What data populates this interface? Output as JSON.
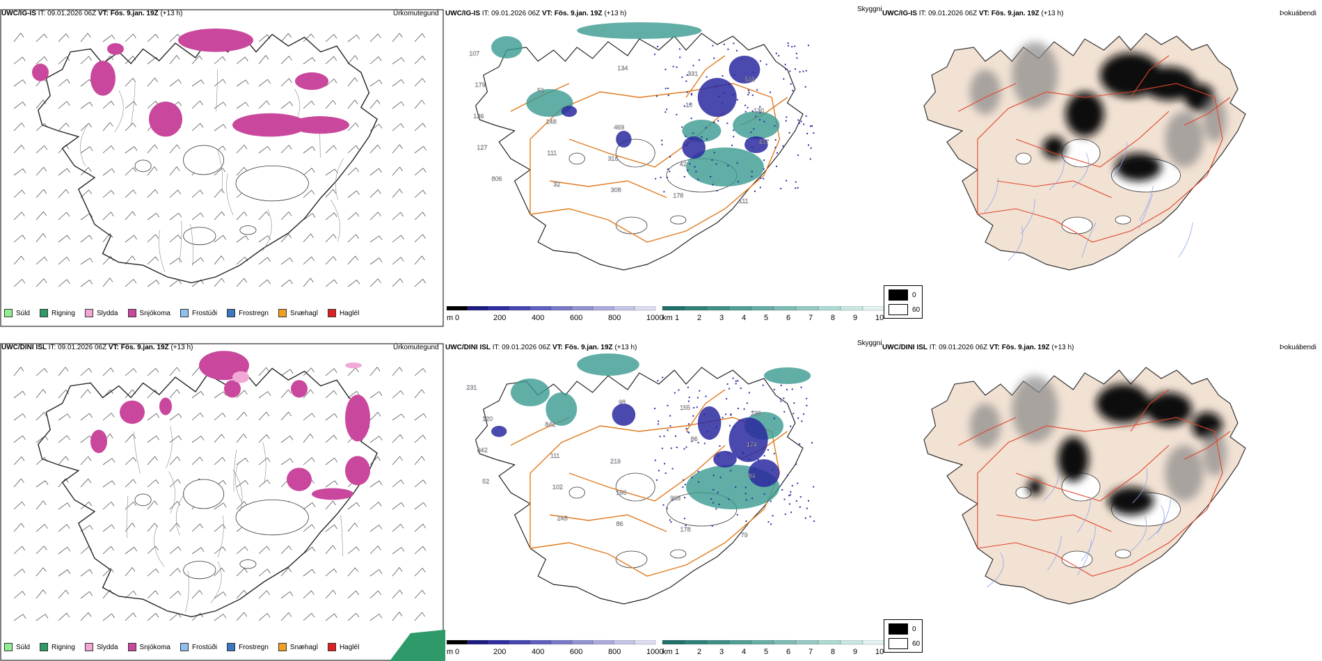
{
  "colors": {
    "snow": "#c9479c",
    "sleet": "#f2a8d6",
    "rain": "#2e9a6a",
    "teal": "#3a9a90",
    "blue": "#2b2aa0",
    "roads": "#e07a1e",
    "land": "#f2e2d4",
    "redroad": "#e0452a",
    "rivers": "#8fa6e8"
  },
  "rows": [
    {
      "model_label": "UWC/IG-IS",
      "it_prefix": "IT:",
      "it_value": "09.01.2026 06Z",
      "vt_prefix": "VT:",
      "vt_value": "Fös. 9.jan. 19Z",
      "lead": "(+13 h)",
      "panel1_title": "Úrkomutegund",
      "panel2_title": "Skyggni",
      "panel3_title": "Þokuábendi",
      "vis_labels": [
        "107",
        "51",
        "469",
        "42",
        "111",
        "179",
        "148",
        "316",
        "178",
        "531",
        "136",
        "111",
        "308",
        "331",
        "130",
        "127",
        "32",
        "134",
        "10",
        "437",
        "806"
      ]
    },
    {
      "model_label": "UWC/DINI ISL",
      "it_prefix": "IT:",
      "it_value": "09.01.2026 06Z",
      "vt_prefix": "VT:",
      "vt_value": "Fös. 9.jan. 19Z",
      "lead": "(+13 h)",
      "panel1_title": "Úrkomutegund",
      "panel2_title": "Skyggni",
      "panel3_title": "Þokuábendi",
      "vis_labels": [
        "231",
        "842",
        "219",
        "968",
        "79",
        "120",
        "111",
        "166",
        "178",
        "136",
        "842",
        "102",
        "86",
        "155",
        "174",
        "52",
        "245",
        "98",
        "86",
        "84"
      ]
    }
  ],
  "ptype_legend": [
    {
      "label": "Súld",
      "color": "#90ee90"
    },
    {
      "label": "Rigning",
      "color": "#2e9a6a"
    },
    {
      "label": "Slydda",
      "color": "#f2a8d6"
    },
    {
      "label": "Snjókoma",
      "color": "#c9479c"
    },
    {
      "label": "Frostúði",
      "color": "#8fbfee"
    },
    {
      "label": "Frostregn",
      "color": "#3a78c2"
    },
    {
      "label": "Snæhagl",
      "color": "#f0a020"
    },
    {
      "label": "Haglél",
      "color": "#e02020"
    }
  ],
  "colorbar_m": {
    "unit": "m",
    "ticks": [
      "0",
      "200",
      "400",
      "600",
      "800",
      "1000"
    ]
  },
  "colorbar_km": {
    "unit": "km",
    "ticks": [
      "1",
      "2",
      "3",
      "4",
      "5",
      "6",
      "7",
      "8",
      "9",
      "10"
    ]
  },
  "fog_legend": {
    "items": [
      {
        "label": "0",
        "color": "#000000"
      },
      {
        "label": "60",
        "color": "#ffffff"
      }
    ]
  }
}
